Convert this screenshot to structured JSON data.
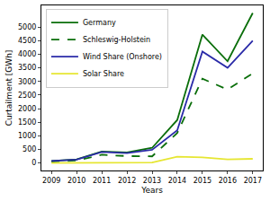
{
  "chart_data": {
    "type": "line",
    "x_label": "Years",
    "y_label": "Curtailment [GWh]",
    "x": [
      2009,
      2010,
      2011,
      2012,
      2013,
      2014,
      2015,
      2016,
      2017
    ],
    "series": [
      {
        "name": "Germany",
        "color": "#0a6e0a",
        "line_style": "solid",
        "values": [
          74,
          127,
          421,
          385,
          555,
          1581,
          4722,
          3743,
          5518
        ]
      },
      {
        "name": "Schleswig-Holstein",
        "color": "#0a6e0a",
        "line_style": "dashed",
        "values": [
          50,
          90,
          300,
          250,
          240,
          1100,
          3100,
          2700,
          3300
        ]
      },
      {
        "name": "Wind Share (Onshore)",
        "color": "#2a2aa8",
        "line_style": "solid",
        "values": [
          70,
          120,
          400,
          360,
          480,
          1200,
          4100,
          3500,
          4500
        ]
      },
      {
        "name": "Solar Share",
        "color": "#e6e632",
        "line_style": "solid",
        "values": [
          0,
          0,
          0,
          0,
          10,
          230,
          200,
          130,
          150
        ]
      }
    ],
    "xlim": [
      2008.6,
      2017.4
    ],
    "xticks": [
      2009,
      2010,
      2011,
      2012,
      2013,
      2014,
      2015,
      2016,
      2017
    ],
    "ylim": [
      -280,
      5800
    ],
    "yticks": [
      0,
      500,
      1000,
      1500,
      2000,
      2500,
      3000,
      3500,
      4000,
      4500,
      5000
    ],
    "grid": false,
    "legend": "upper left"
  }
}
